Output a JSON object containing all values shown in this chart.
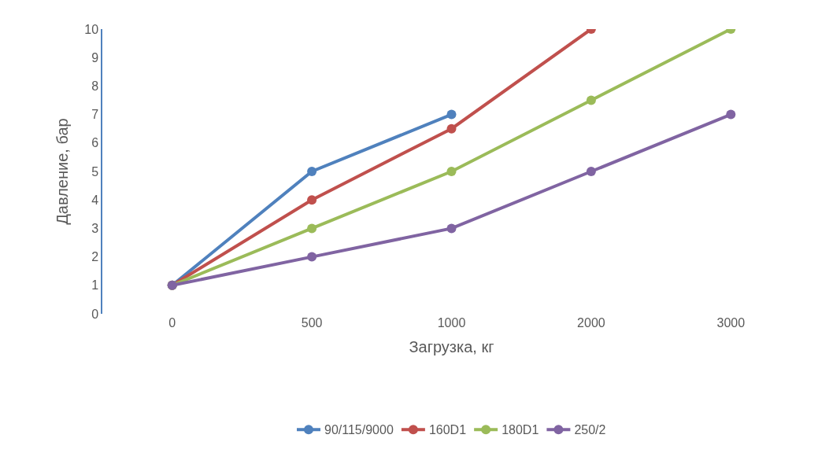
{
  "chart_data": {
    "type": "line",
    "xlabel": "Загрузка, кг",
    "ylabel": "Давление, бар",
    "categories": [
      "0",
      "500",
      "1000",
      "2000",
      "3000"
    ],
    "series": [
      {
        "name": "90/115/9000",
        "color": "#4f81bd",
        "values": [
          1,
          5,
          7,
          null,
          null
        ]
      },
      {
        "name": "160D1",
        "color": "#c0504d",
        "values": [
          1,
          4,
          6.5,
          10,
          null
        ]
      },
      {
        "name": "180D1",
        "color": "#9bbb59",
        "values": [
          1,
          3,
          5,
          7.5,
          10
        ]
      },
      {
        "name": "250/2",
        "color": "#8064a2",
        "values": [
          1,
          2,
          3,
          5,
          7
        ]
      }
    ],
    "ylim": [
      0,
      10
    ],
    "yticks": [
      0,
      1,
      2,
      3,
      4,
      5,
      6,
      7,
      8,
      9,
      10
    ],
    "grid": false,
    "legend": "bottom",
    "marker": "circle",
    "line_style": "solid"
  }
}
